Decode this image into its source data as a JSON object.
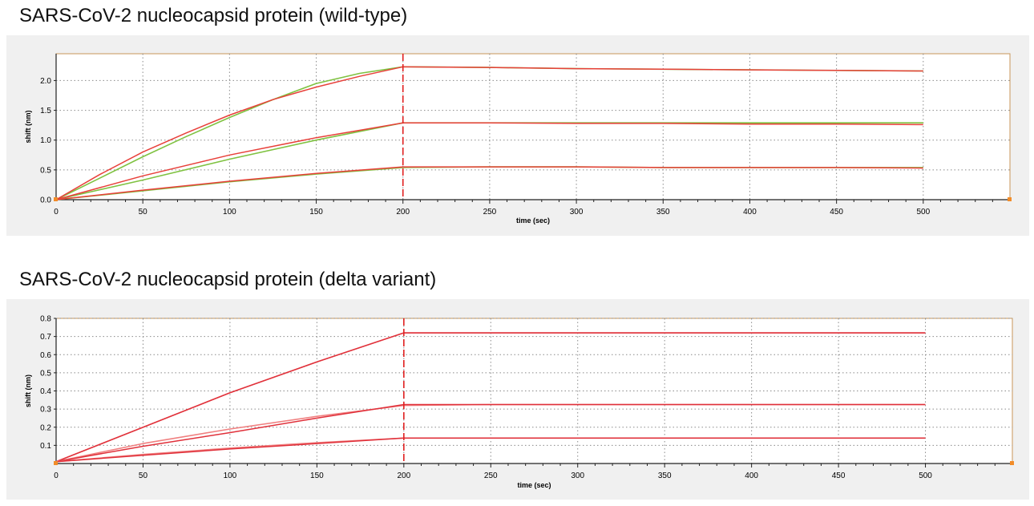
{
  "chart_data": [
    {
      "type": "line",
      "title": "SARS-CoV-2 nucleocapsid protein (wild-type)",
      "xlabel": "time (sec)",
      "ylabel": "shift (nm)",
      "xlim": [
        0,
        550
      ],
      "ylim": [
        0,
        2.45
      ],
      "xticks": [
        0,
        50,
        100,
        150,
        200,
        250,
        300,
        350,
        400,
        450,
        500
      ],
      "yticks": [
        0.0,
        0.5,
        1.0,
        1.5,
        2.0
      ],
      "ytick_labels": [
        "0.0",
        "0.5",
        "1.0",
        "1.5",
        "2.0"
      ],
      "marker_line_x": 200,
      "grid": true,
      "colors": {
        "data": "#7fc241",
        "fit": "#e8403a",
        "marker": "#e02020",
        "frame": "#c8965a"
      },
      "series": [
        {
          "role": "data",
          "color": "#7fc241",
          "x": [
            0,
            25,
            50,
            75,
            100,
            125,
            150,
            175,
            200,
            250,
            300,
            350,
            400,
            450,
            500
          ],
          "y": [
            0,
            0.36,
            0.72,
            1.06,
            1.38,
            1.68,
            1.95,
            2.12,
            2.23,
            2.22,
            2.2,
            2.19,
            2.18,
            2.17,
            2.16
          ]
        },
        {
          "role": "fit",
          "color": "#e8403a",
          "x": [
            0,
            25,
            50,
            75,
            100,
            125,
            150,
            175,
            200,
            250,
            300,
            350,
            400,
            450,
            500
          ],
          "y": [
            0,
            0.42,
            0.8,
            1.12,
            1.42,
            1.68,
            1.89,
            2.07,
            2.23,
            2.22,
            2.2,
            2.19,
            2.18,
            2.17,
            2.16
          ]
        },
        {
          "role": "data",
          "color": "#7fc241",
          "x": [
            0,
            50,
            100,
            150,
            200,
            250,
            300,
            350,
            400,
            450,
            500
          ],
          "y": [
            0,
            0.33,
            0.68,
            1.0,
            1.29,
            1.29,
            1.29,
            1.29,
            1.29,
            1.29,
            1.29
          ]
        },
        {
          "role": "fit",
          "color": "#e8403a",
          "x": [
            0,
            50,
            100,
            150,
            200,
            250,
            300,
            350,
            400,
            450,
            500
          ],
          "y": [
            0,
            0.4,
            0.75,
            1.04,
            1.29,
            1.29,
            1.28,
            1.28,
            1.27,
            1.27,
            1.26
          ]
        },
        {
          "role": "data",
          "color": "#7fc241",
          "x": [
            0,
            50,
            100,
            150,
            200,
            250,
            300,
            350,
            400,
            450,
            500
          ],
          "y": [
            0,
            0.15,
            0.3,
            0.43,
            0.54,
            0.55,
            0.55,
            0.54,
            0.54,
            0.54,
            0.54
          ]
        },
        {
          "role": "fit",
          "color": "#e8403a",
          "x": [
            0,
            50,
            100,
            150,
            200,
            250,
            300,
            350,
            400,
            450,
            500
          ],
          "y": [
            0,
            0.16,
            0.31,
            0.44,
            0.55,
            0.55,
            0.55,
            0.54,
            0.54,
            0.54,
            0.53
          ]
        }
      ]
    },
    {
      "type": "line",
      "title": "SARS-CoV-2 nucleocapsid protein (delta variant)",
      "xlabel": "time (sec)",
      "ylabel": "shift (nm)",
      "xlim": [
        0,
        550
      ],
      "ylim": [
        0,
        0.8
      ],
      "xticks": [
        0,
        50,
        100,
        150,
        200,
        250,
        300,
        350,
        400,
        450,
        500
      ],
      "yticks": [
        0.1,
        0.2,
        0.3,
        0.4,
        0.5,
        0.6,
        0.7,
        0.8
      ],
      "ytick_labels": [
        "0.1",
        "0.2",
        "0.3",
        "0.4",
        "0.5",
        "0.6",
        "0.7",
        "0.8"
      ],
      "marker_line_x": 200,
      "grid": true,
      "colors": {
        "data": "#f08080",
        "fit": "#e0303a",
        "marker": "#e02020",
        "frame": "#c8965a"
      },
      "series": [
        {
          "role": "data",
          "color": "#f08080",
          "x": [
            0,
            50,
            100,
            150,
            200,
            250,
            300,
            350,
            400,
            450,
            500
          ],
          "y": [
            0.01,
            0.2,
            0.39,
            0.56,
            0.72,
            0.72,
            0.72,
            0.72,
            0.72,
            0.72,
            0.72
          ]
        },
        {
          "role": "fit",
          "color": "#e0303a",
          "x": [
            0,
            50,
            100,
            150,
            200,
            250,
            300,
            350,
            400,
            450,
            500
          ],
          "y": [
            0.01,
            0.2,
            0.39,
            0.56,
            0.72,
            0.72,
            0.72,
            0.72,
            0.72,
            0.72,
            0.72
          ]
        },
        {
          "role": "data",
          "color": "#f08080",
          "x": [
            0,
            50,
            100,
            150,
            200,
            250,
            300,
            350,
            400,
            450,
            500
          ],
          "y": [
            0.01,
            0.11,
            0.19,
            0.26,
            0.32,
            0.325,
            0.325,
            0.325,
            0.325,
            0.325,
            0.325
          ]
        },
        {
          "role": "fit",
          "color": "#e0303a",
          "x": [
            0,
            50,
            100,
            150,
            200,
            250,
            300,
            350,
            400,
            450,
            500
          ],
          "y": [
            0.01,
            0.095,
            0.17,
            0.25,
            0.325,
            0.325,
            0.325,
            0.325,
            0.325,
            0.325,
            0.325
          ]
        },
        {
          "role": "data",
          "color": "#f08080",
          "x": [
            0,
            50,
            100,
            150,
            200,
            250,
            300,
            350,
            400,
            450,
            500
          ],
          "y": [
            0.01,
            0.05,
            0.085,
            0.115,
            0.14,
            0.14,
            0.14,
            0.14,
            0.14,
            0.14,
            0.14
          ]
        },
        {
          "role": "fit",
          "color": "#e0303a",
          "x": [
            0,
            50,
            100,
            150,
            200,
            250,
            300,
            350,
            400,
            450,
            500
          ],
          "y": [
            0.01,
            0.045,
            0.08,
            0.11,
            0.14,
            0.14,
            0.14,
            0.14,
            0.14,
            0.14,
            0.14
          ]
        }
      ]
    }
  ]
}
